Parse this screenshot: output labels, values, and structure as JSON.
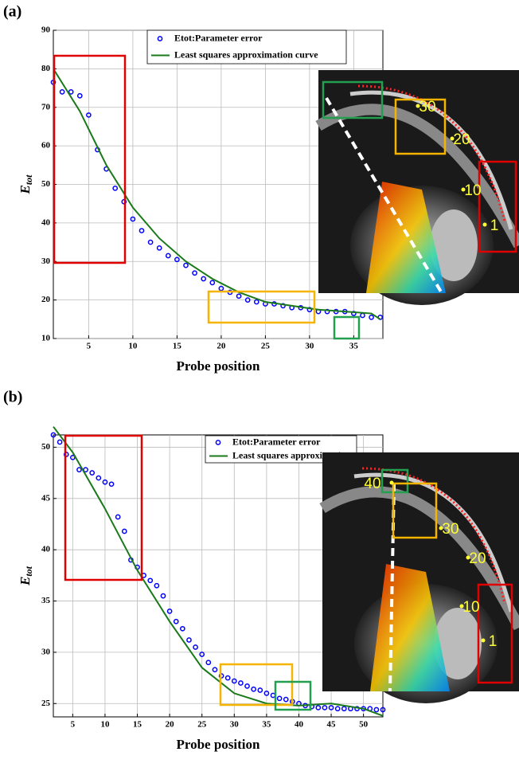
{
  "chart_data": [
    {
      "type": "scatter",
      "panel": "(a)",
      "xlabel": "Probe position",
      "ylabel": {
        "main": "E",
        "sub": "tot"
      },
      "xlim": [
        1,
        38.3
      ],
      "ylim": [
        10,
        90
      ],
      "xticks": [
        5,
        10,
        15,
        20,
        25,
        30,
        35
      ],
      "yticks": [
        10,
        20,
        30,
        40,
        50,
        60,
        70,
        80,
        90
      ],
      "grid": true,
      "legend": "top-center",
      "series": [
        {
          "name": "Etot:Parameter error",
          "color": "#0000ff",
          "mode": "markers",
          "x": [
            1,
            2,
            3,
            4,
            5,
            6,
            7,
            8,
            9,
            10,
            11,
            12,
            13,
            14,
            15,
            16,
            17,
            18,
            19,
            20,
            21,
            22,
            23,
            24,
            25,
            26,
            27,
            28,
            29,
            30,
            31,
            32,
            33,
            34,
            35,
            36,
            37,
            38
          ],
          "values": [
            76.5,
            74,
            74,
            73,
            68,
            59,
            54,
            49,
            45.5,
            41,
            38,
            35,
            33.5,
            31.5,
            30.5,
            29,
            27,
            25.5,
            24.5,
            23,
            22,
            21,
            20,
            19.5,
            19,
            19,
            18.5,
            18,
            18,
            17.5,
            17,
            17,
            17,
            17,
            16.5,
            16,
            15.5,
            15.5
          ]
        },
        {
          "name": "Least squares approximation curve",
          "color": "#1a7a1a",
          "mode": "line",
          "x": [
            1,
            4,
            7,
            10,
            13,
            16,
            19,
            22,
            25,
            28,
            31,
            34,
            37,
            38
          ],
          "values": [
            80,
            69,
            55,
            44,
            36,
            30,
            25.5,
            22,
            19.5,
            18.5,
            17.5,
            17,
            16.5,
            15
          ]
        }
      ],
      "inset_labels": [
        "30",
        "20",
        "10",
        "1"
      ]
    },
    {
      "type": "scatter",
      "panel": "(b)",
      "xlabel": "Probe position",
      "ylabel": {
        "main": "E",
        "sub": "tot"
      },
      "xlim": [
        2,
        53
      ],
      "ylim": [
        23.7,
        51.2
      ],
      "xticks": [
        5,
        10,
        15,
        20,
        25,
        30,
        35,
        40,
        45,
        50
      ],
      "yticks": [
        25,
        30,
        35,
        40,
        45,
        50
      ],
      "grid": true,
      "legend": "top-right",
      "series": [
        {
          "name": "Etot:Parameter error",
          "color": "#0000ff",
          "mode": "markers",
          "x": [
            2,
            3,
            4,
            5,
            6,
            7,
            8,
            9,
            10,
            11,
            12,
            13,
            14,
            15,
            16,
            17,
            18,
            19,
            20,
            21,
            22,
            23,
            24,
            25,
            26,
            27,
            28,
            29,
            30,
            31,
            32,
            33,
            34,
            35,
            36,
            37,
            38,
            39,
            40,
            41,
            42,
            43,
            44,
            45,
            46,
            47,
            48,
            49,
            50,
            51,
            52,
            53
          ],
          "values": [
            51.2,
            50.5,
            49.3,
            49,
            47.8,
            47.8,
            47.5,
            47,
            46.6,
            46.4,
            43.2,
            41.8,
            39,
            38.3,
            37.5,
            37,
            36.5,
            35.5,
            34,
            33,
            32.3,
            31.2,
            30.5,
            29.8,
            29,
            28.3,
            27.7,
            27.5,
            27.2,
            27,
            26.7,
            26.4,
            26.3,
            26,
            25.8,
            25.5,
            25.4,
            25.2,
            25,
            24.8,
            24.7,
            24.6,
            24.6,
            24.6,
            24.5,
            24.5,
            24.5,
            24.5,
            24.5,
            24.5,
            24.4,
            24.4
          ]
        },
        {
          "name": "Least squares approximation curve",
          "color": "#1a7a1a",
          "mode": "line",
          "x": [
            2,
            5,
            10,
            15,
            20,
            25,
            30,
            35,
            40,
            45,
            50,
            53
          ],
          "values": [
            52,
            49.5,
            44,
            38,
            33,
            28.5,
            26,
            25,
            24.8,
            25,
            24.5,
            23.8
          ]
        }
      ],
      "inset_labels": [
        "40",
        "30",
        "20",
        "10",
        "1"
      ]
    }
  ]
}
